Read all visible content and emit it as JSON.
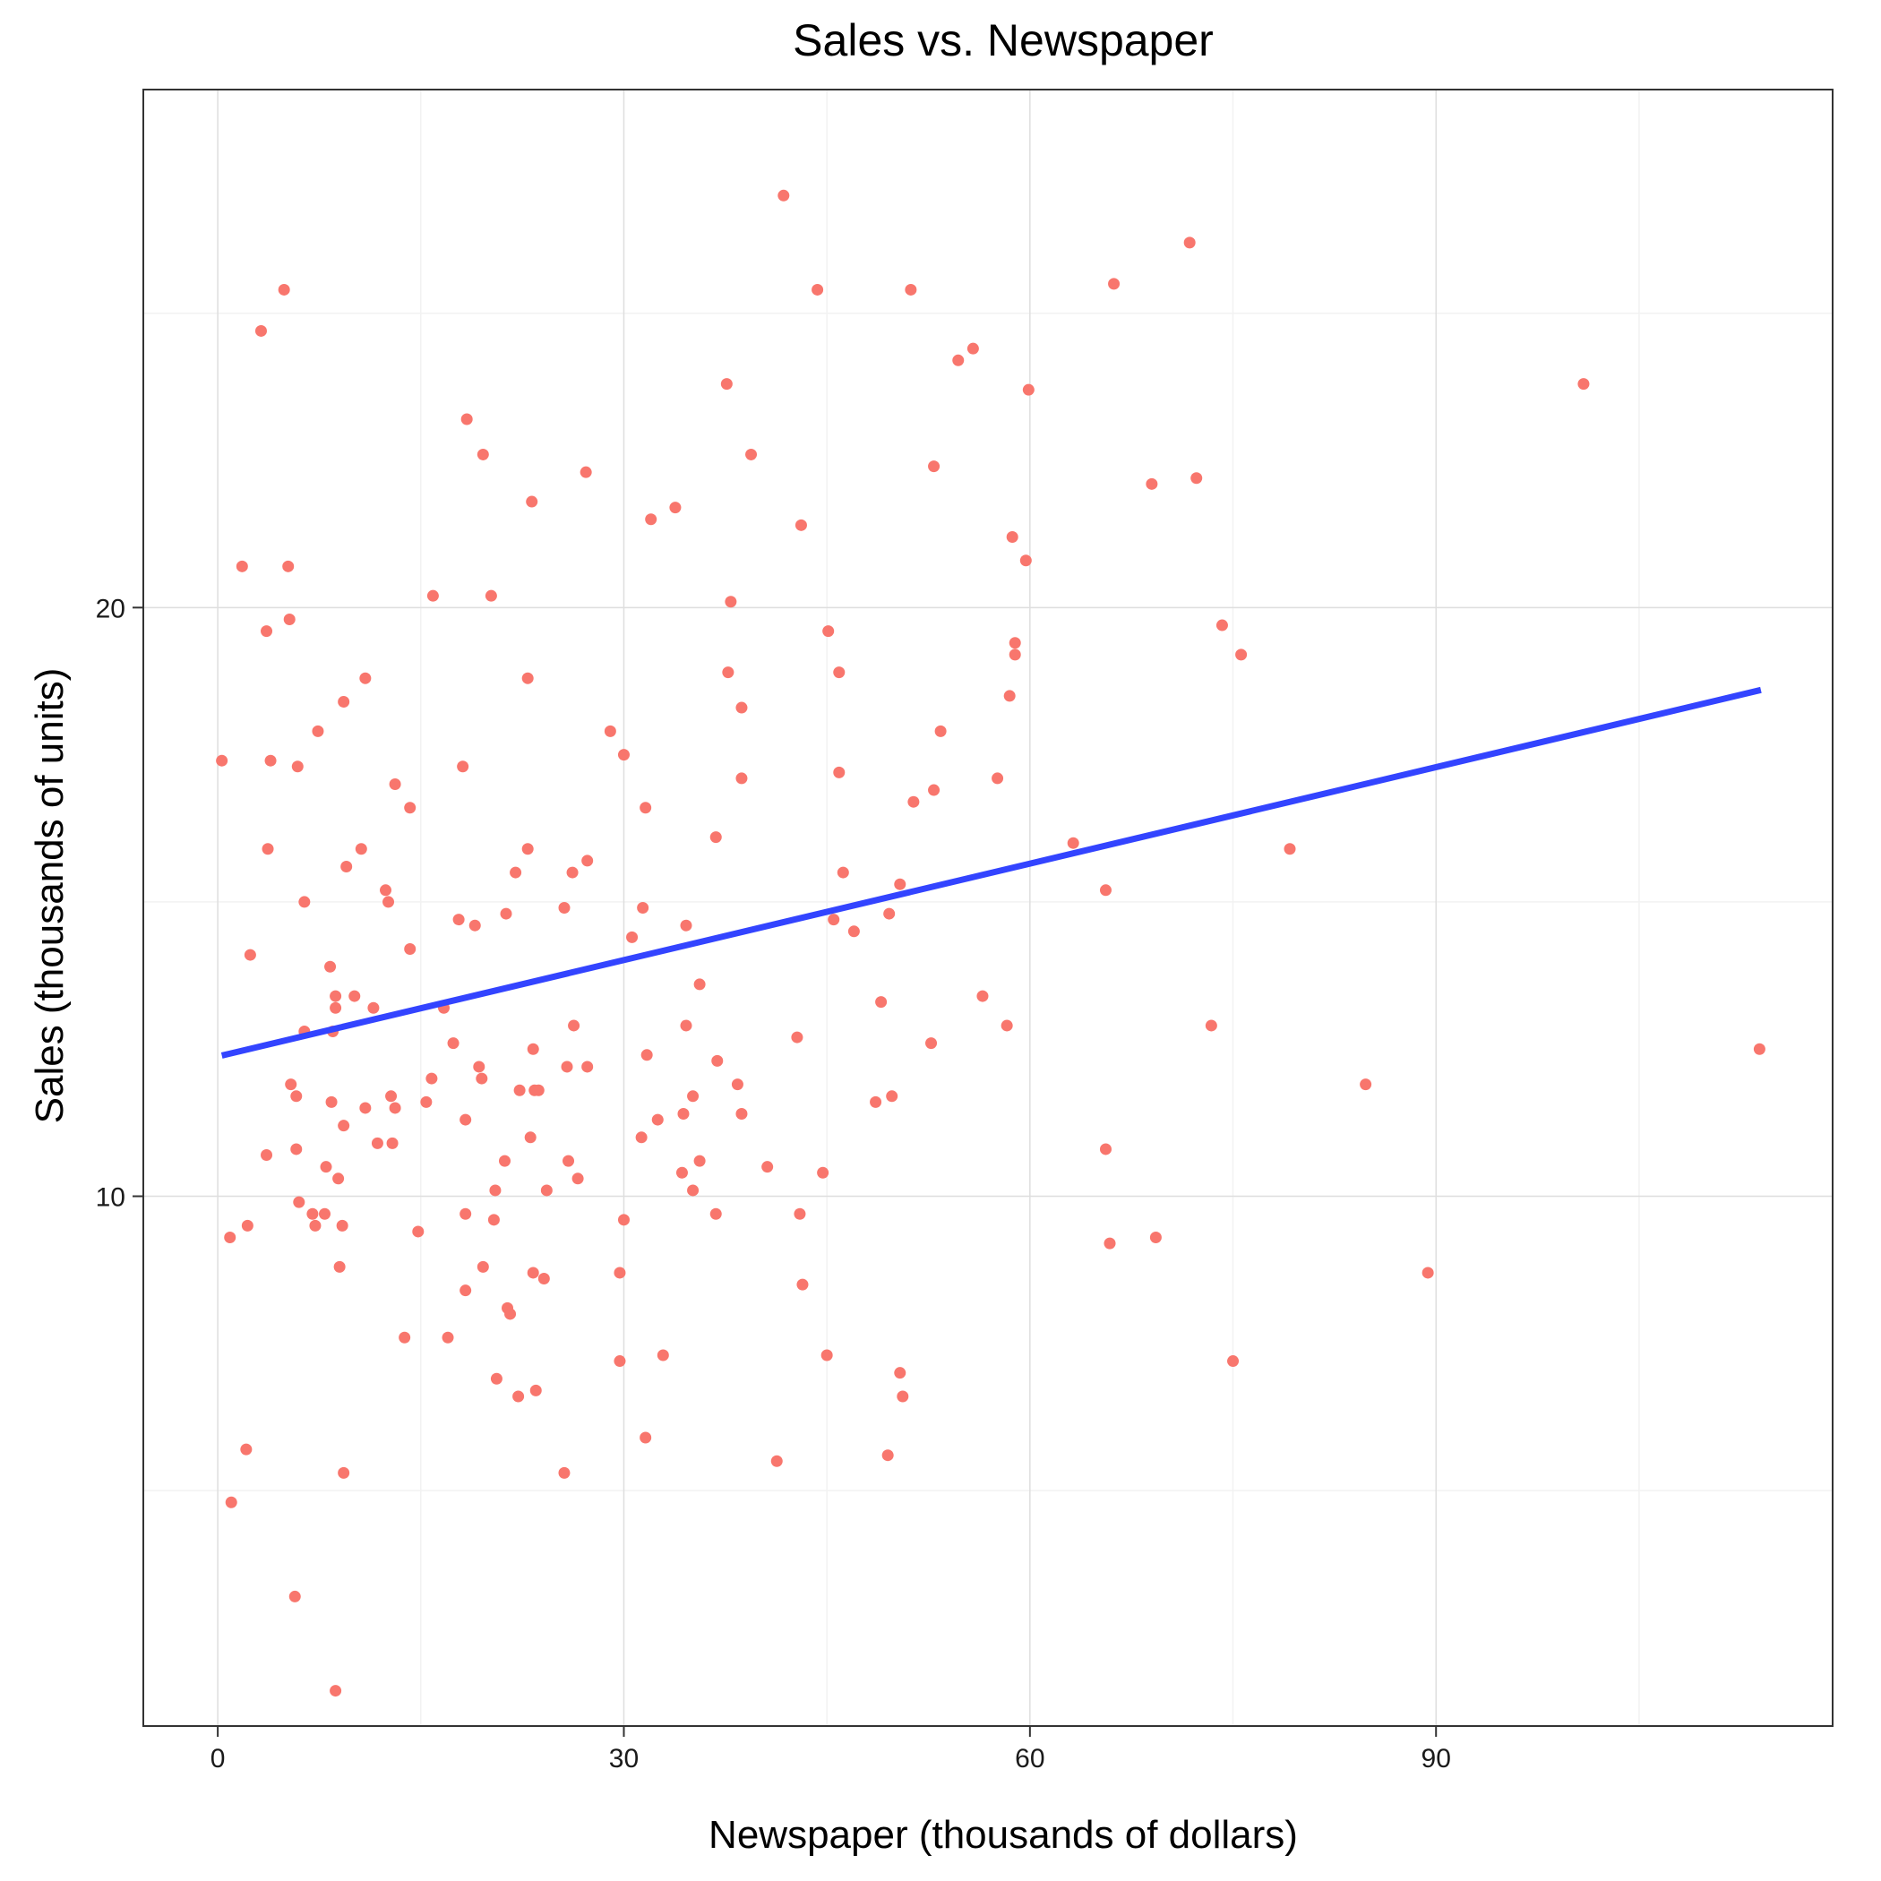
{
  "chart_data": {
    "type": "scatter",
    "title": "Sales vs. Newspaper",
    "xlabel": "Newspaper (thousands of dollars)",
    "ylabel": "Sales (thousands of units)",
    "xlim": [
      -5.5,
      119.3
    ],
    "ylim": [
      1.0,
      28.8
    ],
    "x_ticks": [
      0,
      30,
      60,
      90
    ],
    "y_ticks": [
      10,
      20
    ],
    "x_minor_ticks": [
      15,
      45,
      75,
      105
    ],
    "y_minor_ticks": [
      5,
      15,
      25
    ],
    "grid": true,
    "point_color": "#F8766D",
    "line_color": "#3344FF",
    "regression": {
      "x": [
        0.3,
        114.0
      ],
      "y": [
        12.39,
        18.6
      ]
    },
    "points": [
      [
        41.8,
        27.0
      ],
      [
        71.8,
        26.2
      ],
      [
        66.2,
        25.5
      ],
      [
        4.9,
        25.4
      ],
      [
        44.3,
        25.4
      ],
      [
        51.2,
        25.4
      ],
      [
        3.2,
        24.7
      ],
      [
        55.8,
        24.4
      ],
      [
        54.7,
        24.2
      ],
      [
        37.6,
        23.8
      ],
      [
        100.9,
        23.8
      ],
      [
        59.9,
        23.7
      ],
      [
        18.4,
        23.2
      ],
      [
        19.6,
        22.6
      ],
      [
        39.4,
        22.6
      ],
      [
        52.9,
        22.4
      ],
      [
        27.2,
        22.3
      ],
      [
        72.3,
        22.2
      ],
      [
        69.0,
        22.1
      ],
      [
        23.2,
        21.8
      ],
      [
        33.8,
        21.7
      ],
      [
        32.0,
        21.5
      ],
      [
        43.1,
        21.4
      ],
      [
        58.7,
        21.2
      ],
      [
        59.7,
        20.8
      ],
      [
        1.8,
        20.7
      ],
      [
        5.2,
        20.7
      ],
      [
        15.9,
        20.2
      ],
      [
        20.2,
        20.2
      ],
      [
        37.9,
        20.1
      ],
      [
        5.3,
        19.8
      ],
      [
        74.2,
        19.7
      ],
      [
        3.6,
        19.6
      ],
      [
        45.1,
        19.6
      ],
      [
        58.9,
        19.4
      ],
      [
        58.9,
        19.2
      ],
      [
        75.6,
        19.2
      ],
      [
        37.7,
        18.9
      ],
      [
        45.9,
        18.9
      ],
      [
        10.9,
        18.8
      ],
      [
        22.9,
        18.8
      ],
      [
        58.5,
        18.5
      ],
      [
        9.3,
        18.4
      ],
      [
        38.7,
        18.3
      ],
      [
        7.4,
        17.9
      ],
      [
        29.0,
        17.9
      ],
      [
        53.4,
        17.9
      ],
      [
        30.0,
        17.5
      ],
      [
        0.3,
        17.4
      ],
      [
        3.9,
        17.4
      ],
      [
        5.9,
        17.3
      ],
      [
        18.1,
        17.3
      ],
      [
        45.9,
        17.2
      ],
      [
        38.7,
        17.1
      ],
      [
        57.6,
        17.1
      ],
      [
        13.1,
        17.0
      ],
      [
        52.9,
        16.9
      ],
      [
        51.4,
        16.7
      ],
      [
        14.2,
        16.6
      ],
      [
        31.6,
        16.6
      ],
      [
        36.8,
        16.1
      ],
      [
        63.2,
        16.0
      ],
      [
        3.7,
        15.9
      ],
      [
        10.6,
        15.9
      ],
      [
        22.9,
        15.9
      ],
      [
        79.2,
        15.9
      ],
      [
        27.3,
        15.7
      ],
      [
        9.5,
        15.6
      ],
      [
        22.0,
        15.5
      ],
      [
        26.2,
        15.5
      ],
      [
        46.2,
        15.5
      ],
      [
        50.4,
        15.3
      ],
      [
        12.4,
        15.2
      ],
      [
        65.6,
        15.2
      ],
      [
        6.4,
        15.0
      ],
      [
        12.6,
        15.0
      ],
      [
        25.6,
        14.9
      ],
      [
        31.4,
        14.9
      ],
      [
        21.3,
        14.8
      ],
      [
        49.6,
        14.8
      ],
      [
        17.8,
        14.7
      ],
      [
        45.5,
        14.7
      ],
      [
        19.0,
        14.6
      ],
      [
        34.6,
        14.6
      ],
      [
        47.0,
        14.5
      ],
      [
        30.6,
        14.4
      ],
      [
        2.4,
        14.1
      ],
      [
        14.2,
        14.2
      ],
      [
        8.3,
        13.9
      ],
      [
        35.6,
        13.6
      ],
      [
        8.7,
        13.4
      ],
      [
        10.1,
        13.4
      ],
      [
        56.5,
        13.4
      ],
      [
        8.7,
        13.2
      ],
      [
        11.5,
        13.2
      ],
      [
        16.7,
        13.2
      ],
      [
        49.0,
        13.3
      ],
      [
        26.3,
        12.9
      ],
      [
        34.6,
        12.9
      ],
      [
        73.4,
        12.9
      ],
      [
        58.3,
        12.9
      ],
      [
        6.4,
        12.8
      ],
      [
        8.5,
        12.8
      ],
      [
        42.8,
        12.7
      ],
      [
        17.4,
        12.6
      ],
      [
        52.7,
        12.6
      ],
      [
        23.3,
        12.5
      ],
      [
        31.7,
        12.4
      ],
      [
        113.9,
        12.5
      ],
      [
        36.9,
        12.3
      ],
      [
        19.3,
        12.2
      ],
      [
        25.8,
        12.2
      ],
      [
        27.3,
        12.2
      ],
      [
        15.8,
        12.0
      ],
      [
        19.5,
        12.0
      ],
      [
        5.4,
        11.9
      ],
      [
        22.3,
        11.8
      ],
      [
        23.4,
        11.8
      ],
      [
        23.7,
        11.8
      ],
      [
        38.4,
        11.9
      ],
      [
        84.8,
        11.9
      ],
      [
        5.8,
        11.7
      ],
      [
        12.8,
        11.7
      ],
      [
        35.1,
        11.7
      ],
      [
        49.8,
        11.7
      ],
      [
        8.4,
        11.6
      ],
      [
        15.4,
        11.6
      ],
      [
        48.6,
        11.6
      ],
      [
        10.9,
        11.5
      ],
      [
        13.1,
        11.5
      ],
      [
        34.4,
        11.4
      ],
      [
        38.7,
        11.4
      ],
      [
        18.3,
        11.3
      ],
      [
        32.5,
        11.3
      ],
      [
        9.3,
        11.2
      ],
      [
        23.1,
        11.0
      ],
      [
        31.3,
        11.0
      ],
      [
        11.8,
        10.9
      ],
      [
        12.9,
        10.9
      ],
      [
        5.8,
        10.8
      ],
      [
        65.6,
        10.8
      ],
      [
        3.6,
        10.7
      ],
      [
        21.2,
        10.6
      ],
      [
        25.9,
        10.6
      ],
      [
        35.6,
        10.6
      ],
      [
        8.0,
        10.5
      ],
      [
        40.6,
        10.5
      ],
      [
        34.3,
        10.4
      ],
      [
        44.7,
        10.4
      ],
      [
        8.9,
        10.3
      ],
      [
        26.6,
        10.3
      ],
      [
        20.5,
        10.1
      ],
      [
        24.3,
        10.1
      ],
      [
        35.1,
        10.1
      ],
      [
        6.0,
        9.9
      ],
      [
        7.0,
        9.7
      ],
      [
        7.9,
        9.7
      ],
      [
        18.3,
        9.7
      ],
      [
        36.8,
        9.7
      ],
      [
        43.0,
        9.7
      ],
      [
        20.4,
        9.6
      ],
      [
        30.0,
        9.6
      ],
      [
        7.2,
        9.5
      ],
      [
        9.2,
        9.5
      ],
      [
        2.2,
        9.5
      ],
      [
        14.8,
        9.4
      ],
      [
        0.9,
        9.3
      ],
      [
        65.9,
        9.2
      ],
      [
        69.3,
        9.3
      ],
      [
        9.0,
        8.8
      ],
      [
        19.6,
        8.8
      ],
      [
        23.3,
        8.7
      ],
      [
        29.7,
        8.7
      ],
      [
        89.4,
        8.7
      ],
      [
        24.1,
        8.6
      ],
      [
        43.2,
        8.5
      ],
      [
        18.3,
        8.4
      ],
      [
        21.4,
        8.1
      ],
      [
        21.6,
        8.0
      ],
      [
        13.8,
        7.6
      ],
      [
        17.0,
        7.6
      ],
      [
        32.9,
        7.3
      ],
      [
        45.0,
        7.3
      ],
      [
        29.7,
        7.2
      ],
      [
        75.0,
        7.2
      ],
      [
        50.4,
        7.0
      ],
      [
        20.6,
        6.9
      ],
      [
        23.5,
        6.7
      ],
      [
        22.2,
        6.6
      ],
      [
        50.6,
        6.6
      ],
      [
        31.6,
        5.9
      ],
      [
        2.1,
        5.7
      ],
      [
        49.5,
        5.6
      ],
      [
        41.3,
        5.5
      ],
      [
        9.3,
        5.3
      ],
      [
        25.6,
        5.3
      ],
      [
        1.0,
        4.8
      ],
      [
        5.7,
        3.2
      ],
      [
        8.7,
        1.6
      ]
    ]
  }
}
